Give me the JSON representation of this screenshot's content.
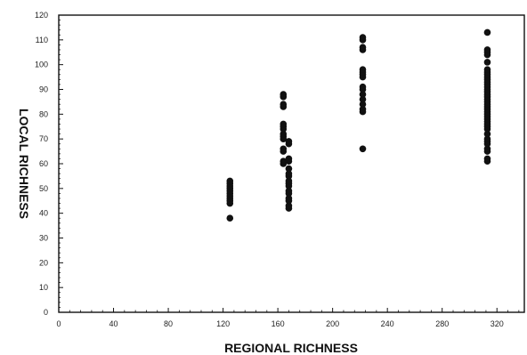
{
  "chart_data": {
    "type": "scatter",
    "title": "",
    "xlabel": "REGIONAL RICHNESS",
    "ylabel": "LOCAL RICHNESS",
    "xlim": [
      0,
      340
    ],
    "ylim": [
      0,
      120
    ],
    "xticks": [
      0,
      40,
      80,
      120,
      160,
      200,
      240,
      280,
      320
    ],
    "yticks": [
      0,
      10,
      20,
      30,
      40,
      50,
      60,
      70,
      80,
      90,
      100,
      110,
      120
    ],
    "grid": false,
    "legend": "none",
    "point_color": "#111111",
    "series": [
      {
        "points": [
          [
            125,
            38
          ],
          [
            125,
            44
          ],
          [
            125,
            45
          ],
          [
            125,
            46
          ],
          [
            125,
            47
          ],
          [
            125,
            48
          ],
          [
            125,
            49
          ],
          [
            125,
            50
          ],
          [
            125,
            51
          ],
          [
            125,
            52
          ],
          [
            125,
            53
          ],
          [
            164,
            60
          ],
          [
            164,
            61
          ],
          [
            164,
            65
          ],
          [
            164,
            66
          ],
          [
            164,
            70
          ],
          [
            164,
            71
          ],
          [
            164,
            72
          ],
          [
            164,
            74
          ],
          [
            164,
            75
          ],
          [
            164,
            76
          ],
          [
            164,
            83
          ],
          [
            164,
            84
          ],
          [
            164,
            87
          ],
          [
            164,
            88
          ],
          [
            168,
            42
          ],
          [
            168,
            43
          ],
          [
            168,
            45
          ],
          [
            168,
            46
          ],
          [
            168,
            48
          ],
          [
            168,
            49
          ],
          [
            168,
            51
          ],
          [
            168,
            52
          ],
          [
            168,
            53
          ],
          [
            168,
            55
          ],
          [
            168,
            56
          ],
          [
            168,
            58
          ],
          [
            168,
            61
          ],
          [
            168,
            62
          ],
          [
            168,
            68
          ],
          [
            168,
            69
          ],
          [
            222,
            66
          ],
          [
            222,
            81
          ],
          [
            222,
            82
          ],
          [
            222,
            84
          ],
          [
            222,
            86
          ],
          [
            222,
            88
          ],
          [
            222,
            90
          ],
          [
            222,
            91
          ],
          [
            222,
            95
          ],
          [
            222,
            96
          ],
          [
            222,
            97
          ],
          [
            222,
            98
          ],
          [
            222,
            106
          ],
          [
            222,
            107
          ],
          [
            222,
            110
          ],
          [
            222,
            111
          ],
          [
            313,
            61
          ],
          [
            313,
            62
          ],
          [
            313,
            65
          ],
          [
            313,
            66
          ],
          [
            313,
            68
          ],
          [
            313,
            69
          ],
          [
            313,
            70
          ],
          [
            313,
            72
          ],
          [
            313,
            74
          ],
          [
            313,
            75
          ],
          [
            313,
            76
          ],
          [
            313,
            77
          ],
          [
            313,
            78
          ],
          [
            313,
            79
          ],
          [
            313,
            80
          ],
          [
            313,
            81
          ],
          [
            313,
            82
          ],
          [
            313,
            83
          ],
          [
            313,
            84
          ],
          [
            313,
            85
          ],
          [
            313,
            86
          ],
          [
            313,
            87
          ],
          [
            313,
            88
          ],
          [
            313,
            89
          ],
          [
            313,
            90
          ],
          [
            313,
            91
          ],
          [
            313,
            92
          ],
          [
            313,
            93
          ],
          [
            313,
            94
          ],
          [
            313,
            95
          ],
          [
            313,
            96
          ],
          [
            313,
            97
          ],
          [
            313,
            98
          ],
          [
            313,
            101
          ],
          [
            313,
            104
          ],
          [
            313,
            105
          ],
          [
            313,
            106
          ],
          [
            313,
            113
          ]
        ]
      }
    ]
  }
}
